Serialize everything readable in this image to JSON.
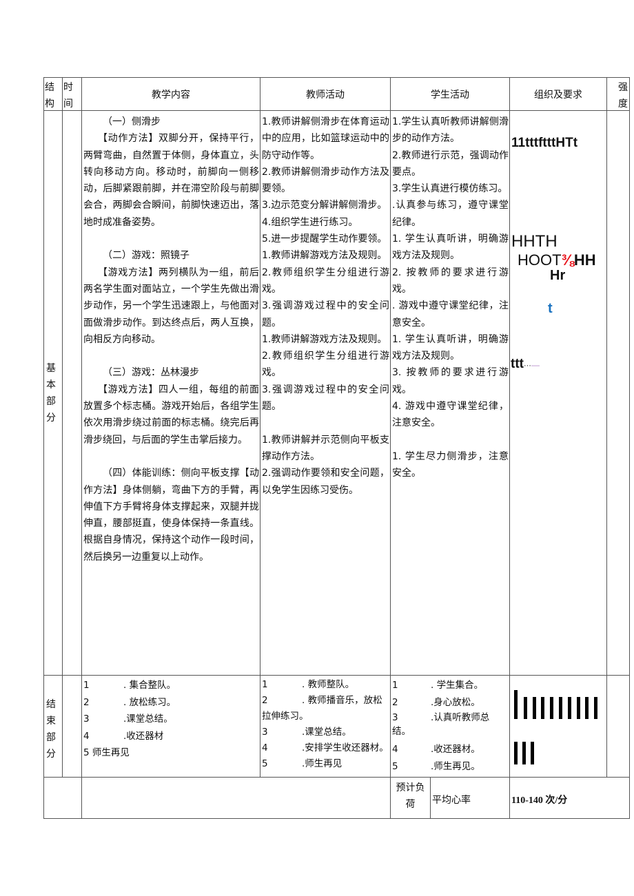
{
  "header": {
    "structure": "结构",
    "time": "时间",
    "content": "教学内容",
    "teacher": "教师活动",
    "student": "学生活动",
    "organization": "组织及要求",
    "intensity": "强度"
  },
  "basic": {
    "section_label": [
      "基",
      "本",
      "部",
      "分"
    ],
    "content": [
      {
        "title": "（一）侧滑步",
        "text": "【动作方法】双脚分开，保持平行，两臂弯曲，自然置于体侧，身体直立，头转向移动方向。移动时，前脚向一侧移动，后脚紧跟前脚，并在滞空阶段与前脚会合，两脚会合瞬间，前脚快速迈出，落地时成准备姿势。"
      },
      {
        "title": "（二）游戏：照镜子",
        "text": "【游戏方法】两列横队为一组，前后两名学生面对面站立，一个学生先做出滑步动作，另一个学生迅速跟上，与他面对面做滑步动作。到达终点后，两人互换，向相反方向移动。"
      },
      {
        "title": "（三）游戏：丛林漫步",
        "text": "【游戏方法】四人一组，每组的前面放置多个标志桶。游戏开始后，各组学生依次用滑步绕过前面的标志桶。绕完后再滑步绕回，与后面的学生击掌后接力。"
      },
      {
        "title": "",
        "text": "（四）体能训练：侧向平板支撑【动作方法】身体侧躺，弯曲下方的手臂，再伸值下方手臂将身体支撑起来，双腿并拢伸直，腰部挺直，使身体保持一条直线。根据自身情况，保持这个动作一段时间，然后换另一边重复以上动作。"
      }
    ],
    "teacher": [
      "1.教师讲解侧滑步在体育运动中的应用，比如篮球运动中的防守动作等。",
      "2.教师讲解侧滑步动作方法及要领。",
      "3.边示范变分解讲解侧滑步。",
      "4.组织学生进行练习。",
      "5.进一步提醒学生动作要领。",
      "1.教师讲解游戏方法及规则。",
      "2.教师组织学生分组进行游戏。",
      "3.强调游戏过程中的安全问题。",
      "1.教师讲解游戏方法及规则。",
      "2.教师组织学生分组进行游戏。",
      "3.强调游戏过程中的安全问题。",
      "",
      "1.教师讲解并示范侧向平板支撑动作方法。",
      "2.强调动作要领和安全问题，以免学生因练习受伤。"
    ],
    "student": [
      "1.学生认真听教师讲解侧滑步的动作方法。",
      "2.教师进行示范，强调动作要点。",
      "3.学生认真进行模仿练习。",
      ".认真参与练习，遵守课堂纪律。",
      "1. 学生认真听讲，明确游戏方法及规则。",
      "2. 按教师的要求进行游戏。",
      ". 游戏中遵守课堂纪律，注意安全。",
      "1. 学生认真听讲，明确游戏方法及规则。",
      "3. 按教师的要求进行游戏。",
      "4. 游戏中遵守课堂纪律，注意安全。",
      "",
      "1. 学生尽力侧滑步，注意安全。"
    ],
    "organization": {
      "line1": "11tttftttHTt",
      "line2": "HHTH",
      "line3a": "HOOT",
      "line3b": "⅜",
      "line3c": "HH",
      "line4": "Hr",
      "line5": "t",
      "line6a": "ttt",
      "line6b": "···",
      "line6c": "—",
      "colors": {
        "fraction": "#e8141b",
        "t": "#1a72c0",
        "dash": "#b48ac8"
      }
    }
  },
  "ending": {
    "section_label": [
      "结",
      "束",
      "部",
      "分"
    ],
    "content": [
      {
        "n": "1",
        "t": ". 集合整队。"
      },
      {
        "n": "2",
        "t": ". 放松练习。"
      },
      {
        "n": "3",
        "t": ".课堂总结。"
      },
      {
        "n": "4",
        "t": ".收还器材"
      },
      {
        "n": "",
        "t": "5 师生再见"
      }
    ],
    "teacher": [
      {
        "n": "1",
        "t": ". 教师整队。"
      },
      {
        "n": "2",
        "t": ". 教师播音乐，放松拉伸练习。"
      },
      {
        "n": "3",
        "t": ".课堂总结。"
      },
      {
        "n": "4",
        "t": ".安排学生收还器材。"
      },
      {
        "n": "5",
        "t": ".师生再见"
      }
    ],
    "student": [
      {
        "n": "1",
        "t": ". 学生集合。"
      },
      {
        "n": "2",
        "t": ".身心放松。"
      },
      {
        "n": "3",
        "t": ".认真听教师总结。"
      },
      {
        "n": "4",
        "t": ".收还器材。"
      },
      {
        "n": "5",
        "t": ".师生再见。"
      }
    ]
  },
  "footer": {
    "load_label": "预计负荷",
    "heart_rate_label": "平均心率",
    "heart_rate_value": "110-140 次/分"
  }
}
